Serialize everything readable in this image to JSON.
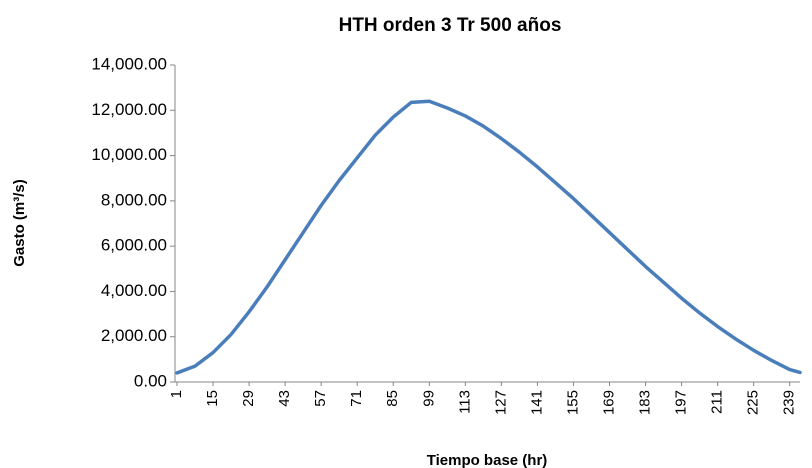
{
  "chart_data": {
    "type": "line",
    "title": "HTH orden 3 Tr 500 años",
    "x_label": "Tiempo base (hr)",
    "y_label": "Gasto (m³/s)",
    "x": [
      1,
      8,
      15,
      22,
      29,
      36,
      43,
      50,
      57,
      64,
      71,
      78,
      85,
      92,
      99,
      106,
      113,
      120,
      127,
      134,
      141,
      148,
      155,
      162,
      169,
      176,
      183,
      190,
      197,
      204,
      211,
      218,
      225,
      232,
      239,
      243
    ],
    "series": [
      {
        "name": "Gasto",
        "color": "#4a7ebb",
        "values": [
          400,
          700,
          1300,
          2100,
          3100,
          4200,
          5400,
          6600,
          7800,
          8900,
          9900,
          10900,
          11700,
          12350,
          12400,
          12100,
          11750,
          11300,
          10750,
          10150,
          9500,
          8800,
          8100,
          7350,
          6600,
          5850,
          5100,
          4400,
          3700,
          3050,
          2450,
          1900,
          1400,
          950,
          550,
          420
        ]
      }
    ],
    "xlim": [
      1,
      243
    ],
    "xticks": [
      1,
      15,
      29,
      43,
      57,
      71,
      85,
      99,
      113,
      127,
      141,
      155,
      169,
      183,
      197,
      211,
      225,
      239
    ],
    "ylim": [
      0,
      14000
    ],
    "yticks": [
      {
        "value": 0,
        "label": "0.00"
      },
      {
        "value": 2000,
        "label": "2,000.00"
      },
      {
        "value": 4000,
        "label": "4,000.00"
      },
      {
        "value": 6000,
        "label": "6,000.00"
      },
      {
        "value": 8000,
        "label": "8,000.00"
      },
      {
        "value": 10000,
        "label": "10,000.00"
      },
      {
        "value": 12000,
        "label": "12,000.00"
      },
      {
        "value": 14000,
        "label": "14,000.00"
      }
    ],
    "grid": false
  }
}
